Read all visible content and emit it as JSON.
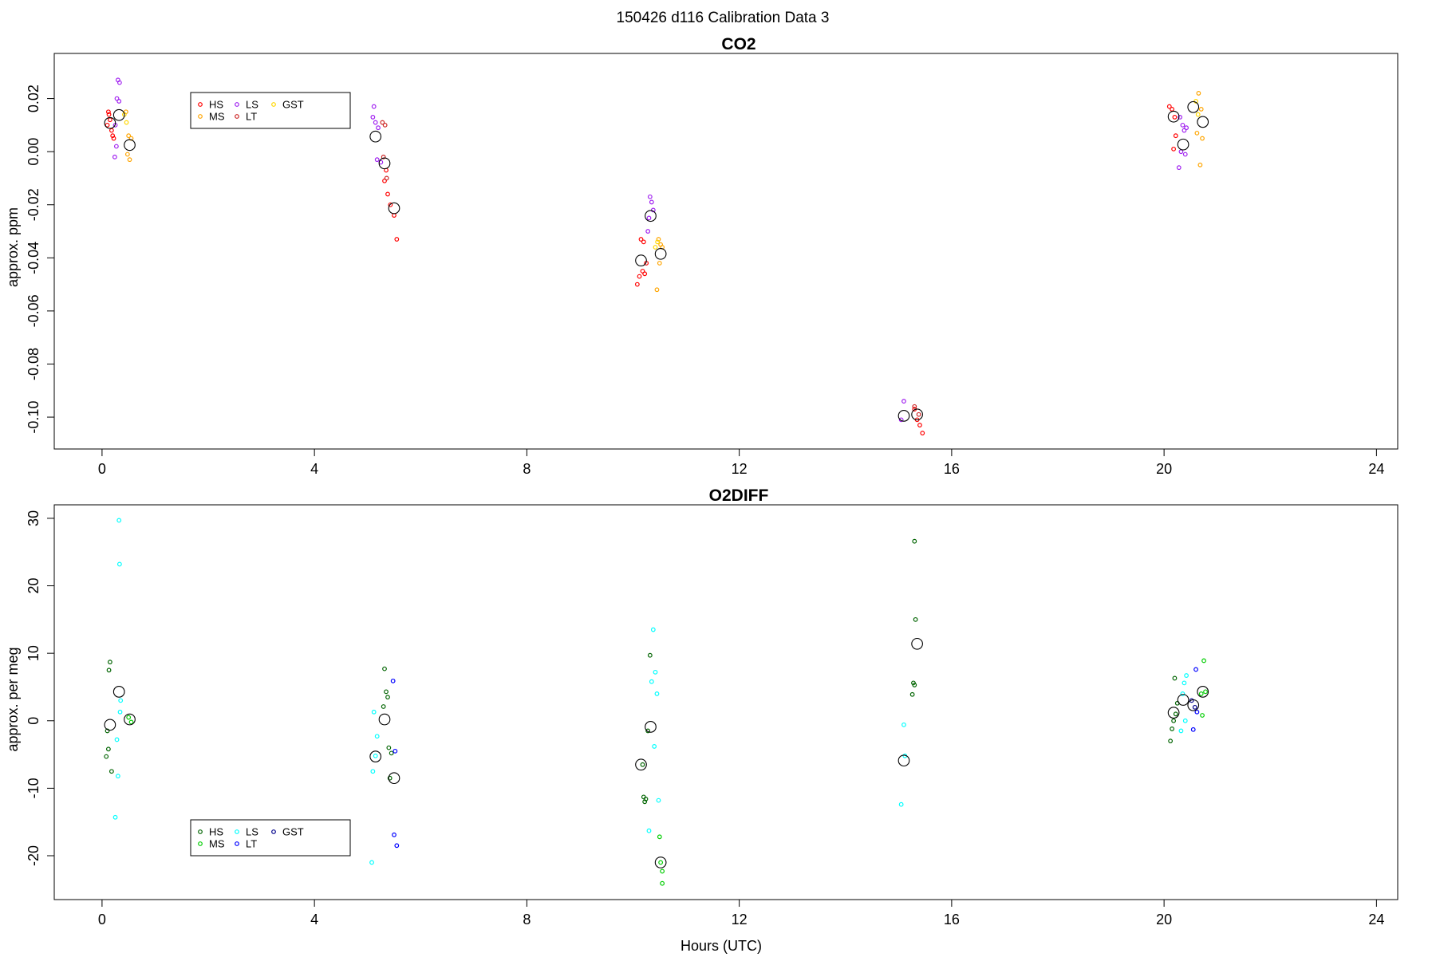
{
  "figure_title": "150426   d116   Calibration Data 3",
  "chart_data": [
    {
      "type": "scatter",
      "title": "CO2",
      "xlabel": "",
      "ylabel": "approx. ppm",
      "xlim": [
        -0.9,
        24.4
      ],
      "ylim": [
        -0.112,
        0.037
      ],
      "xticks": [
        0,
        4,
        8,
        12,
        16,
        20,
        24
      ],
      "xtick_labels": [
        "0",
        "4",
        "8",
        "12",
        "16",
        "20",
        "24"
      ],
      "yticks": [
        0.02,
        0.0,
        -0.02,
        -0.04,
        -0.06,
        -0.08,
        -0.1
      ],
      "ytick_labels": [
        "0.02",
        "0.00",
        "-0.02",
        "-0.04",
        "-0.06",
        "-0.08",
        "-0.10"
      ],
      "grid": false,
      "legend_position": "top-left",
      "legend": [
        {
          "label": "HS",
          "color": "#ff0000"
        },
        {
          "label": "MS",
          "color": "#ffa500"
        },
        {
          "label": "LS",
          "color": "#a020f0"
        },
        {
          "label": "LT",
          "color": "#cd2626"
        },
        {
          "label": "GST",
          "color": "#ffd700"
        }
      ],
      "series": [
        {
          "name": "HS",
          "color": "#ff0000",
          "points": [
            [
              0.12,
              0.015
            ],
            [
              0.15,
              0.012
            ],
            [
              0.1,
              0.01
            ],
            [
              0.18,
              0.008
            ],
            [
              0.2,
              0.006
            ],
            [
              0.22,
              0.005
            ],
            [
              0.13,
              0.014
            ],
            [
              5.32,
              -0.011
            ],
            [
              5.38,
              -0.016
            ],
            [
              5.43,
              -0.02
            ],
            [
              5.5,
              -0.024
            ],
            [
              5.55,
              -0.033
            ],
            [
              5.35,
              -0.007
            ],
            [
              10.08,
              -0.05
            ],
            [
              10.12,
              -0.047
            ],
            [
              10.18,
              -0.045
            ],
            [
              10.22,
              -0.046
            ],
            [
              10.15,
              -0.033
            ],
            [
              10.2,
              -0.034
            ],
            [
              10.25,
              -0.042
            ],
            [
              15.3,
              -0.097
            ],
            [
              15.35,
              -0.101
            ],
            [
              15.4,
              -0.103
            ],
            [
              15.45,
              -0.106
            ],
            [
              20.1,
              0.017
            ],
            [
              20.15,
              0.016
            ],
            [
              20.2,
              0.013
            ],
            [
              20.18,
              0.001
            ],
            [
              20.22,
              0.006
            ]
          ]
        },
        {
          "name": "MS",
          "color": "#ffa500",
          "points": [
            [
              0.45,
              0.015
            ],
            [
              0.5,
              0.006
            ],
            [
              0.55,
              0.005
            ],
            [
              0.48,
              -0.001
            ],
            [
              0.52,
              -0.003
            ],
            [
              10.48,
              -0.033
            ],
            [
              10.52,
              -0.035
            ],
            [
              10.55,
              -0.036
            ],
            [
              10.5,
              -0.042
            ],
            [
              10.45,
              -0.052
            ],
            [
              20.65,
              0.022
            ],
            [
              20.7,
              0.016
            ],
            [
              20.72,
              0.005
            ],
            [
              20.68,
              -0.005
            ],
            [
              20.62,
              0.007
            ]
          ]
        },
        {
          "name": "LS",
          "color": "#a020f0",
          "points": [
            [
              0.3,
              0.027
            ],
            [
              0.33,
              0.026
            ],
            [
              0.28,
              0.02
            ],
            [
              0.32,
              0.019
            ],
            [
              0.25,
              0.01
            ],
            [
              0.27,
              0.002
            ],
            [
              0.24,
              -0.002
            ],
            [
              5.12,
              0.017
            ],
            [
              5.1,
              0.013
            ],
            [
              5.15,
              0.011
            ],
            [
              5.2,
              0.009
            ],
            [
              5.18,
              -0.003
            ],
            [
              5.25,
              -0.004
            ],
            [
              10.32,
              -0.017
            ],
            [
              10.35,
              -0.019
            ],
            [
              10.38,
              -0.022
            ],
            [
              10.3,
              -0.025
            ],
            [
              10.28,
              -0.03
            ],
            [
              15.1,
              -0.094
            ],
            [
              15.05,
              -0.101
            ],
            [
              20.3,
              0.013
            ],
            [
              20.35,
              0.01
            ],
            [
              20.38,
              0.008
            ],
            [
              20.32,
              0.0
            ],
            [
              20.4,
              -0.001
            ],
            [
              20.28,
              -0.006
            ],
            [
              20.42,
              0.009
            ]
          ]
        },
        {
          "name": "LT",
          "color": "#cd2626",
          "points": [
            [
              5.28,
              0.011
            ],
            [
              5.33,
              0.01
            ],
            [
              5.3,
              -0.002
            ],
            [
              5.36,
              -0.01
            ],
            [
              15.3,
              -0.096
            ],
            [
              15.38,
              -0.099
            ]
          ]
        },
        {
          "name": "GST",
          "color": "#ffd700",
          "points": [
            [
              0.42,
              0.014
            ],
            [
              0.46,
              0.011
            ],
            [
              10.42,
              -0.036
            ],
            [
              10.46,
              -0.034
            ],
            [
              20.6,
              0.019
            ],
            [
              20.64,
              0.014
            ]
          ]
        }
      ],
      "means": [
        [
          0.15,
          0.0108
        ],
        [
          0.32,
          0.0138
        ],
        [
          0.52,
          0.0025
        ],
        [
          5.15,
          0.0057
        ],
        [
          5.32,
          -0.0044
        ],
        [
          5.5,
          -0.0213
        ],
        [
          10.15,
          -0.041
        ],
        [
          10.33,
          -0.0242
        ],
        [
          10.52,
          -0.0385
        ],
        [
          15.1,
          -0.0995
        ],
        [
          15.35,
          -0.099
        ],
        [
          20.18,
          0.0132
        ],
        [
          20.36,
          0.0027
        ],
        [
          20.55,
          0.0168
        ],
        [
          20.73,
          0.0112
        ]
      ]
    },
    {
      "type": "scatter",
      "title": "O2DIFF",
      "xlabel": "Hours (UTC)",
      "ylabel": "approx. per meg",
      "xlim": [
        -0.9,
        24.4
      ],
      "ylim": [
        -26.5,
        32.0
      ],
      "xticks": [
        0,
        4,
        8,
        12,
        16,
        20,
        24
      ],
      "xtick_labels": [
        "0",
        "4",
        "8",
        "12",
        "16",
        "20",
        "24"
      ],
      "yticks": [
        30,
        20,
        10,
        0,
        -10,
        -20
      ],
      "ytick_labels": [
        "30",
        "20",
        "10",
        "0",
        "-10",
        "-20"
      ],
      "grid": false,
      "legend_position": "bottom-left",
      "legend": [
        {
          "label": "HS",
          "color": "#006400"
        },
        {
          "label": "MS",
          "color": "#00cd00"
        },
        {
          "label": "LS",
          "color": "#00ffff"
        },
        {
          "label": "LT",
          "color": "#0000ff"
        },
        {
          "label": "GST",
          "color": "#00008b"
        }
      ],
      "series": [
        {
          "name": "HS",
          "color": "#006400",
          "points": [
            [
              0.15,
              8.7
            ],
            [
              0.13,
              7.5
            ],
            [
              0.1,
              -1.5
            ],
            [
              0.12,
              -4.2
            ],
            [
              0.08,
              -5.3
            ],
            [
              0.18,
              -7.5
            ],
            [
              5.32,
              7.7
            ],
            [
              5.35,
              4.3
            ],
            [
              5.38,
              3.5
            ],
            [
              5.3,
              2.1
            ],
            [
              5.4,
              -4.0
            ],
            [
              5.45,
              -4.8
            ],
            [
              5.42,
              -8.5
            ],
            [
              10.32,
              9.7
            ],
            [
              10.28,
              -1.5
            ],
            [
              10.2,
              -11.3
            ],
            [
              10.24,
              -11.6
            ],
            [
              10.22,
              -12.0
            ],
            [
              10.18,
              -6.5
            ],
            [
              15.3,
              26.6
            ],
            [
              15.32,
              15.0
            ],
            [
              15.28,
              5.6
            ],
            [
              15.3,
              5.3
            ],
            [
              15.26,
              3.9
            ],
            [
              20.2,
              6.3
            ],
            [
              20.25,
              2.6
            ],
            [
              20.18,
              0.0
            ],
            [
              20.15,
              -1.2
            ],
            [
              20.12,
              -3.0
            ],
            [
              20.22,
              1.0
            ]
          ]
        },
        {
          "name": "MS",
          "color": "#00cd00",
          "points": [
            [
              0.5,
              0.5
            ],
            [
              0.55,
              -0.2
            ],
            [
              10.5,
              -17.2
            ],
            [
              10.52,
              -21.0
            ],
            [
              10.55,
              -22.3
            ],
            [
              10.55,
              -24.1
            ],
            [
              20.75,
              8.9
            ],
            [
              20.7,
              4.0
            ],
            [
              20.72,
              0.8
            ],
            [
              20.78,
              4.3
            ]
          ]
        },
        {
          "name": "LS",
          "color": "#00ffff",
          "points": [
            [
              0.32,
              29.7
            ],
            [
              0.33,
              23.2
            ],
            [
              0.35,
              3.0
            ],
            [
              0.28,
              -2.8
            ],
            [
              0.3,
              -8.2
            ],
            [
              0.25,
              -14.3
            ],
            [
              0.34,
              1.3
            ],
            [
              5.12,
              1.3
            ],
            [
              5.18,
              -2.3
            ],
            [
              5.1,
              -7.5
            ],
            [
              5.08,
              -21.0
            ],
            [
              5.15,
              -5.2
            ],
            [
              10.38,
              13.5
            ],
            [
              10.42,
              7.2
            ],
            [
              10.35,
              5.8
            ],
            [
              10.45,
              4.0
            ],
            [
              10.4,
              -3.8
            ],
            [
              10.48,
              -11.8
            ],
            [
              10.3,
              -16.3
            ],
            [
              15.05,
              -12.4
            ],
            [
              15.1,
              -0.6
            ],
            [
              15.12,
              -5.2
            ],
            [
              20.42,
              6.7
            ],
            [
              20.38,
              5.6
            ],
            [
              20.35,
              4.0
            ],
            [
              20.4,
              0.0
            ],
            [
              20.32,
              -1.5
            ]
          ]
        },
        {
          "name": "LT",
          "color": "#0000ff",
          "points": [
            [
              5.48,
              5.9
            ],
            [
              5.52,
              -4.5
            ],
            [
              5.5,
              -16.9
            ],
            [
              5.55,
              -18.5
            ],
            [
              20.6,
              7.6
            ],
            [
              20.62,
              1.3
            ],
            [
              20.55,
              -1.3
            ]
          ]
        },
        {
          "name": "GST",
          "color": "#00008b",
          "points": [
            [
              20.52,
              3.0
            ],
            [
              20.58,
              2.0
            ]
          ]
        }
      ],
      "means": [
        [
          0.15,
          -0.6
        ],
        [
          0.32,
          4.3
        ],
        [
          0.52,
          0.2
        ],
        [
          5.15,
          -5.3
        ],
        [
          5.32,
          0.2
        ],
        [
          5.5,
          -8.5
        ],
        [
          10.15,
          -6.5
        ],
        [
          10.33,
          -0.9
        ],
        [
          10.52,
          -21.0
        ],
        [
          15.1,
          -5.9
        ],
        [
          15.35,
          11.4
        ],
        [
          20.18,
          1.2
        ],
        [
          20.36,
          3.1
        ],
        [
          20.55,
          2.3
        ],
        [
          20.73,
          4.3
        ]
      ]
    }
  ]
}
